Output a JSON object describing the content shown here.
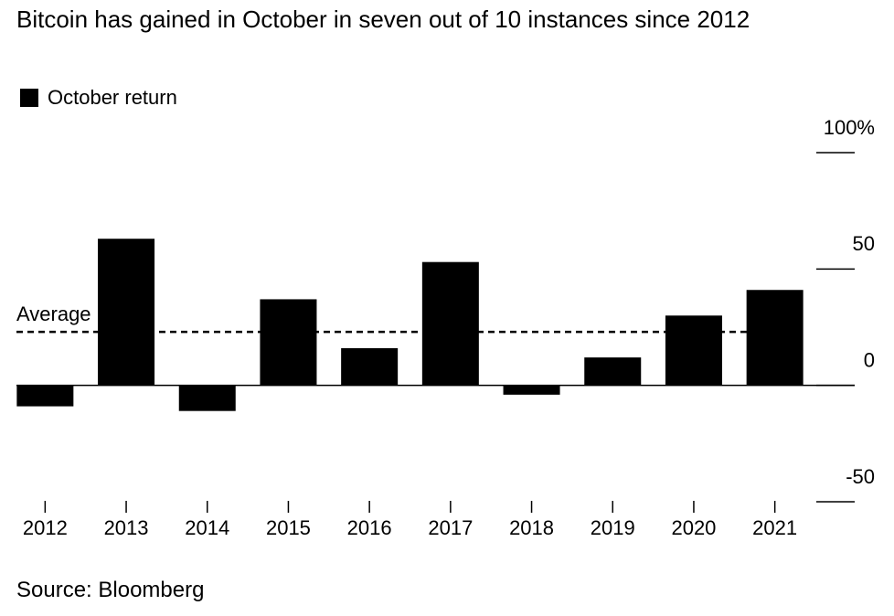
{
  "chart_data": {
    "type": "bar",
    "title": "Bitcoin has gained in October in seven out of 10 instances since 2012",
    "legend": "October return",
    "categories": [
      "2012",
      "2013",
      "2014",
      "2015",
      "2016",
      "2017",
      "2018",
      "2019",
      "2020",
      "2021"
    ],
    "values": [
      -9,
      63,
      -11,
      37,
      16,
      53,
      -4,
      12,
      30,
      41
    ],
    "color": "#000000",
    "ylim": [
      -50,
      100
    ],
    "yticks": [
      -50,
      0,
      50,
      {
        "value": 100,
        "label": "100%"
      }
    ],
    "average": 23,
    "average_label": "Average",
    "source": "Source: Bloomberg"
  }
}
